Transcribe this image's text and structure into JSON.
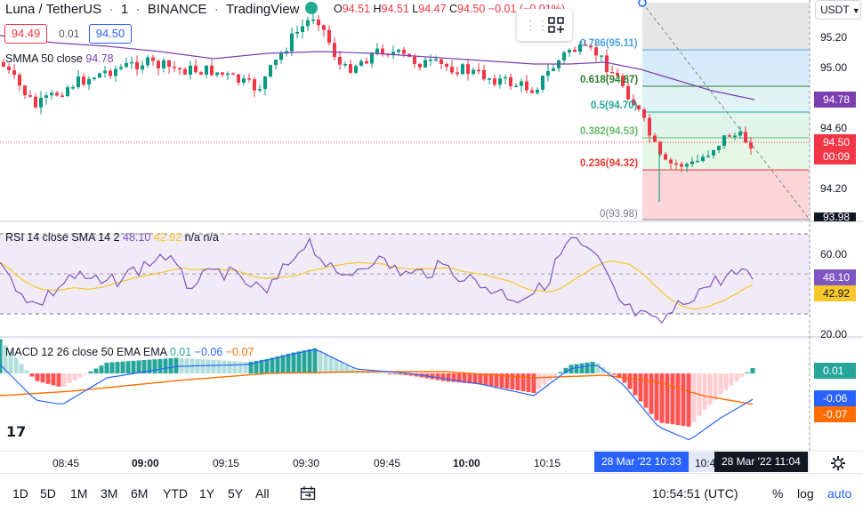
{
  "header": {
    "title": "Luna / TetherUS",
    "interval": "1",
    "exchange": "BINANCE",
    "source": "TradingView",
    "ohlc": {
      "o_label": "O",
      "o_value": "94.51",
      "h_label": "H",
      "h_value": "94.51",
      "l_label": "L",
      "l_value": "94.47",
      "c_label": "C",
      "c_value": "94.50",
      "change": "−0.01 (−0.01%)"
    },
    "sell_price": "94.49",
    "spread": "0.01",
    "buy_price": "94.50",
    "currency": "USDT"
  },
  "smma": {
    "label": "SMMA 50 close",
    "value": "94.78"
  },
  "rsi": {
    "label": "RSI 14 close SMA 14 2",
    "value": "48.10",
    "sma_value": "42.92",
    "na1": "n/a",
    "na2": "n/a"
  },
  "macd": {
    "label": "MACD 12 26 close 50 EMA EMA",
    "hist": "0.01",
    "macd": "−0.06",
    "signal": "−0.07"
  },
  "price_axis": [
    "95.20",
    "95.00",
    "94.60",
    "94.20",
    "93.98"
  ],
  "price_badges": {
    "smma": "94.78",
    "last": "94.50",
    "countdown": "00:09"
  },
  "rsi_axis": [
    "60.00",
    "20.00"
  ],
  "rsi_badges": {
    "rsi": "48.10",
    "sma": "42.92"
  },
  "macd_badges": {
    "hist": "0.01",
    "macd": "-0.06",
    "signal": "-0.07"
  },
  "fib": {
    "levels": [
      {
        "ratio": "0.786",
        "value": "(95.11)"
      },
      {
        "ratio": "0.618",
        "value": "(94.87)"
      },
      {
        "ratio": "0.5",
        "value": "(94.70)"
      },
      {
        "ratio": "0.382",
        "value": "(94.53)"
      },
      {
        "ratio": "0.236",
        "value": "(94.32)"
      },
      {
        "ratio": "0",
        "value": "(93.98)"
      }
    ]
  },
  "time_axis": [
    "08:45",
    "09:00",
    "09:15",
    "09:30",
    "09:45",
    "10:00",
    "10:15",
    "10:4"
  ],
  "cursor": {
    "range_start": "28 Mar '22   10:33",
    "current": "28 Mar '22   11:04"
  },
  "bottom_bar": {
    "timeframes": [
      "1D",
      "5D",
      "1M",
      "3M",
      "6M",
      "YTD",
      "1Y",
      "5Y",
      "All"
    ],
    "clock": "10:54:51 (UTC)",
    "percent": "%",
    "log": "log",
    "auto": "auto"
  },
  "colors": {
    "up": "#089981",
    "down": "#f23645",
    "smma": "#7b3fb0",
    "rsi": "#7e57c2",
    "rsi_sma": "#f7c72b",
    "macd": "#2962ff",
    "signal": "#ff6d00",
    "accent": "#2962ff"
  },
  "icons": [
    "gear-icon",
    "compare-icon",
    "tradingview-logo-icon",
    "settings-icon"
  ]
}
